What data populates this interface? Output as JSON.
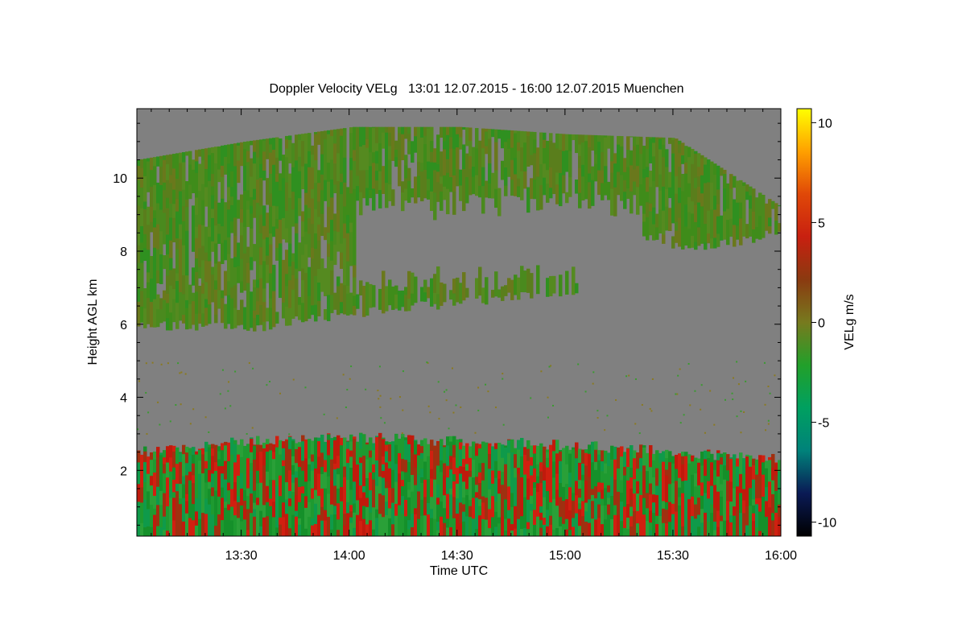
{
  "chart_data": {
    "type": "heatmap",
    "title": "Doppler Velocity VELg   13:01 12.07.2015 - 16:00 12.07.2015 Muenchen",
    "xlabel": "Time UTC",
    "ylabel": "Height AGL km",
    "colorbar_label": "VELg m/s",
    "x_ticks": [
      "13:30",
      "14:00",
      "14:30",
      "15:00",
      "15:30",
      "16:00"
    ],
    "x_tick_minutes": [
      29,
      59,
      89,
      119,
      149,
      179
    ],
    "x_range_minutes": [
      0,
      179
    ],
    "y_ticks": [
      2,
      4,
      6,
      8,
      10
    ],
    "y_range": [
      0.2,
      11.9
    ],
    "colorbar_ticks": [
      10,
      5,
      0,
      -5,
      -10
    ],
    "colorbar_range": [
      -10.7,
      10.7
    ],
    "colorbar_colors": [
      "#000000",
      "#0a1a55",
      "#00827a",
      "#00a060",
      "#22a02a",
      "#777a1e",
      "#8a3a10",
      "#c82010",
      "#e04808",
      "#ffa000",
      "#ffff00"
    ],
    "no_signal_color": "#808080",
    "features": {
      "boundary_layer_top_km": [
        2.5,
        2.8,
        2.9,
        2.8,
        2.7,
        2.5,
        2.3
      ],
      "cirrus_base_km": [
        6.0,
        5.9,
        6.3,
        6.6,
        6.9,
        8.0,
        8.5
      ],
      "cirrus_top_km": [
        10.5,
        11.0,
        11.4,
        11.4,
        11.2,
        11.1,
        9.2
      ]
    }
  }
}
